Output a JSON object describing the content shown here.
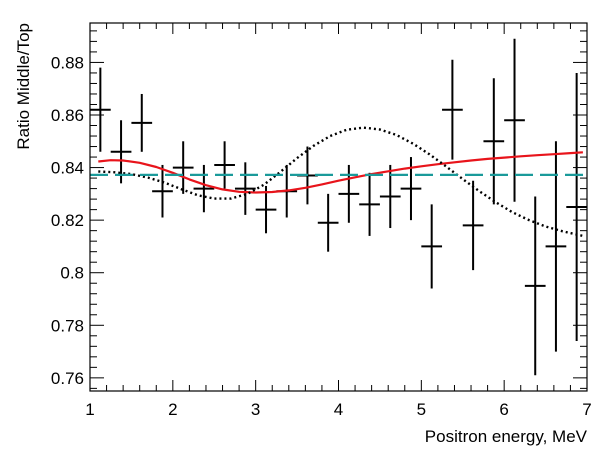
{
  "chart_data": {
    "type": "scatter",
    "title": "",
    "xlabel": "Positron energy, MeV",
    "ylabel": "Ratio Middle/Top",
    "xlim": [
      1,
      7
    ],
    "ylim": [
      0.755,
      0.895
    ],
    "xticks": [
      1,
      2,
      3,
      4,
      5,
      6,
      7
    ],
    "xtick_labels": [
      "1",
      "2",
      "3",
      "4",
      "5",
      "6",
      "7"
    ],
    "yticks": [
      0.76,
      0.78,
      0.8,
      0.82,
      0.84,
      0.86,
      0.88
    ],
    "ytick_labels": [
      "0.76",
      "0.78",
      "0.8",
      "0.82",
      "0.84",
      "0.86",
      "0.88"
    ],
    "grid": false,
    "legend": "none",
    "series": [
      {
        "kind": "points-with-errors",
        "color": "#000000",
        "points": [
          {
            "x": 1.125,
            "y": 0.862,
            "xerr": 0.125,
            "yerr": 0.016
          },
          {
            "x": 1.375,
            "y": 0.846,
            "xerr": 0.125,
            "yerr": 0.012
          },
          {
            "x": 1.625,
            "y": 0.857,
            "xerr": 0.125,
            "yerr": 0.011
          },
          {
            "x": 1.875,
            "y": 0.831,
            "xerr": 0.125,
            "yerr": 0.01
          },
          {
            "x": 2.125,
            "y": 0.84,
            "xerr": 0.125,
            "yerr": 0.01
          },
          {
            "x": 2.375,
            "y": 0.832,
            "xerr": 0.125,
            "yerr": 0.009
          },
          {
            "x": 2.625,
            "y": 0.841,
            "xerr": 0.125,
            "yerr": 0.009
          },
          {
            "x": 2.875,
            "y": 0.832,
            "xerr": 0.125,
            "yerr": 0.01
          },
          {
            "x": 3.125,
            "y": 0.824,
            "xerr": 0.125,
            "yerr": 0.009
          },
          {
            "x": 3.375,
            "y": 0.831,
            "xerr": 0.125,
            "yerr": 0.01
          },
          {
            "x": 3.625,
            "y": 0.837,
            "xerr": 0.125,
            "yerr": 0.011
          },
          {
            "x": 3.875,
            "y": 0.819,
            "xerr": 0.125,
            "yerr": 0.011
          },
          {
            "x": 4.125,
            "y": 0.83,
            "xerr": 0.125,
            "yerr": 0.011
          },
          {
            "x": 4.375,
            "y": 0.826,
            "xerr": 0.125,
            "yerr": 0.012
          },
          {
            "x": 4.625,
            "y": 0.829,
            "xerr": 0.125,
            "yerr": 0.012
          },
          {
            "x": 4.875,
            "y": 0.832,
            "xerr": 0.125,
            "yerr": 0.012
          },
          {
            "x": 5.125,
            "y": 0.81,
            "xerr": 0.125,
            "yerr": 0.016
          },
          {
            "x": 5.375,
            "y": 0.862,
            "xerr": 0.125,
            "yerr": 0.019
          },
          {
            "x": 5.625,
            "y": 0.818,
            "xerr": 0.125,
            "yerr": 0.017
          },
          {
            "x": 5.875,
            "y": 0.85,
            "xerr": 0.125,
            "yerr": 0.024
          },
          {
            "x": 6.125,
            "y": 0.858,
            "xerr": 0.125,
            "yerr": 0.031
          },
          {
            "x": 6.375,
            "y": 0.795,
            "xerr": 0.125,
            "yerr": 0.034
          },
          {
            "x": 6.625,
            "y": 0.81,
            "xerr": 0.125,
            "yerr": 0.04
          },
          {
            "x": 6.875,
            "y": 0.825,
            "xerr": 0.125,
            "yerr": 0.051
          }
        ]
      },
      {
        "kind": "line",
        "style": "solid",
        "color": "#e8141b",
        "x": [
          1.1,
          1.25,
          1.4,
          1.6,
          1.8,
          2.0,
          2.2,
          2.4,
          2.6,
          2.8,
          3.0,
          3.2,
          3.4,
          3.6,
          3.8,
          4.0,
          4.2,
          4.4,
          4.6,
          4.8,
          5.0,
          5.2,
          5.4,
          5.6,
          5.8,
          6.0,
          6.2,
          6.4,
          6.6,
          6.8,
          6.95
        ],
        "y": [
          0.8423,
          0.8428,
          0.8427,
          0.8418,
          0.8402,
          0.838,
          0.8355,
          0.8333,
          0.8317,
          0.8308,
          0.8305,
          0.8307,
          0.8313,
          0.8323,
          0.8336,
          0.835,
          0.8363,
          0.8375,
          0.8386,
          0.8396,
          0.8405,
          0.8413,
          0.842,
          0.8427,
          0.8433,
          0.8438,
          0.8443,
          0.8447,
          0.8451,
          0.8455,
          0.8458
        ]
      },
      {
        "kind": "line",
        "style": "dotted",
        "color": "#000000",
        "x": [
          1.1,
          1.3,
          1.5,
          1.7,
          1.9,
          2.1,
          2.3,
          2.5,
          2.7,
          2.9,
          3.1,
          3.3,
          3.5,
          3.7,
          3.9,
          4.1,
          4.3,
          4.5,
          4.7,
          4.9,
          5.1,
          5.3,
          5.5,
          5.7,
          5.9,
          6.1,
          6.3,
          6.5,
          6.7,
          6.95
        ],
        "y": [
          0.8385,
          0.8382,
          0.8375,
          0.8362,
          0.8343,
          0.8318,
          0.8295,
          0.8282,
          0.8282,
          0.83,
          0.8335,
          0.8384,
          0.8436,
          0.8483,
          0.852,
          0.8544,
          0.8552,
          0.8545,
          0.8524,
          0.8491,
          0.845,
          0.8404,
          0.8356,
          0.831,
          0.8268,
          0.823,
          0.82,
          0.8176,
          0.8158,
          0.814
        ]
      },
      {
        "kind": "line",
        "style": "dashed",
        "color": "#1a9a9a",
        "x": [
          1.0,
          7.0
        ],
        "y": [
          0.8372,
          0.8372
        ]
      }
    ]
  }
}
